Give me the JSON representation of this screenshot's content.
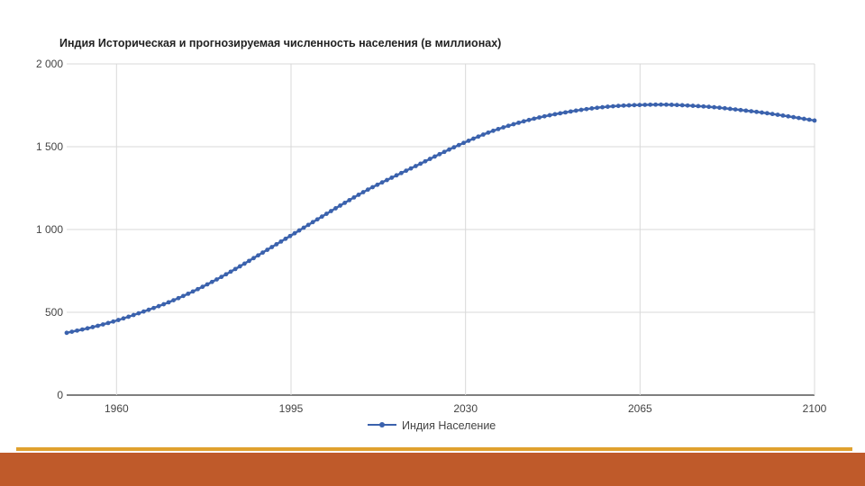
{
  "colors": {
    "series": "#3b62ad",
    "grid": "#d9d9d9",
    "baseline": "#333333",
    "footer_band": "#bf5a2a",
    "footer_thin": "#e0a12e"
  },
  "chart_data": {
    "type": "line",
    "title": "Индия Историческая и прогнозируемая численность населения (в миллионах)",
    "xlabel": "",
    "ylabel": "",
    "xlim": [
      1950,
      2100
    ],
    "ylim": [
      0,
      2000
    ],
    "grid": true,
    "legend_position": "bottom",
    "x_ticks": [
      {
        "value": 1960,
        "label": "1960"
      },
      {
        "value": 1995,
        "label": "1995"
      },
      {
        "value": 2030,
        "label": "2030"
      },
      {
        "value": 2065,
        "label": "2065"
      },
      {
        "value": 2100,
        "label": "2100"
      }
    ],
    "y_ticks": [
      {
        "value": 0,
        "label": "0"
      },
      {
        "value": 500,
        "label": "500"
      },
      {
        "value": 1000,
        "label": "1 000"
      },
      {
        "value": 1500,
        "label": "1 500"
      },
      {
        "value": 2000,
        "label": "2 000"
      }
    ],
    "series": [
      {
        "name": "Индия Население",
        "x": [
          1950,
          1955,
          1960,
          1965,
          1970,
          1975,
          1980,
          1985,
          1990,
          1995,
          2000,
          2005,
          2010,
          2015,
          2020,
          2025,
          2030,
          2035,
          2040,
          2045,
          2050,
          2055,
          2060,
          2065,
          2070,
          2075,
          2080,
          2085,
          2090,
          2095,
          2100
        ],
        "y": [
          376,
          409,
          450,
          500,
          555,
          621,
          697,
          782,
          873,
          964,
          1056,
          1147,
          1234,
          1310,
          1383,
          1458,
          1528,
          1590,
          1639,
          1678,
          1707,
          1730,
          1745,
          1752,
          1754,
          1748,
          1738,
          1722,
          1704,
          1682,
          1658
        ]
      }
    ]
  }
}
